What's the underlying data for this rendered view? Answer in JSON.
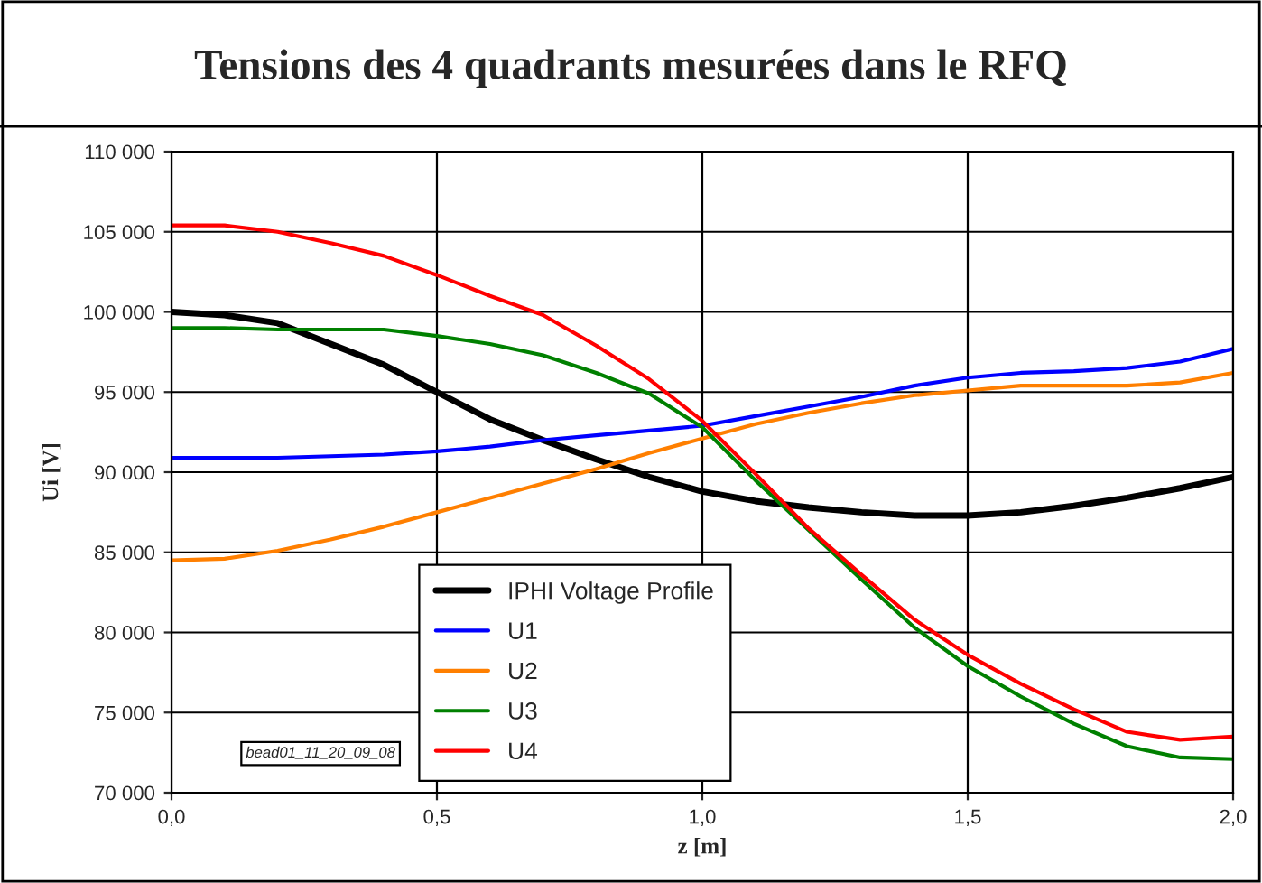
{
  "chart_data": {
    "type": "line",
    "title": "Tensions des 4 quadrants mesurées dans le RFQ",
    "xlabel": "z [m]",
    "ylabel": "Ui [V]",
    "x": [
      0,
      0.1,
      0.2,
      0.3,
      0.4,
      0.5,
      0.6,
      0.7,
      0.8,
      0.9,
      1.0,
      1.1,
      1.2,
      1.3,
      1.4,
      1.5,
      1.6,
      1.7,
      1.8,
      1.9,
      2.0
    ],
    "series": [
      {
        "name": "IPHI Voltage Profile",
        "color": "#000000",
        "values": [
          100000,
          99800,
          99300,
          98000,
          96700,
          95000,
          93300,
          92000,
          90800,
          89700,
          88800,
          88200,
          87800,
          87500,
          87300,
          87300,
          87500,
          87900,
          88400,
          89000,
          89700
        ]
      },
      {
        "name": "U1",
        "color": "#0000ff",
        "values": [
          90900,
          90900,
          90900,
          91000,
          91100,
          91300,
          91600,
          92000,
          92300,
          92600,
          92900,
          93500,
          94100,
          94700,
          95400,
          95900,
          96200,
          96300,
          96500,
          96900,
          97700
        ]
      },
      {
        "name": "U2",
        "color": "#ff7f00",
        "values": [
          84500,
          84600,
          85100,
          85800,
          86600,
          87500,
          88400,
          89300,
          90200,
          91200,
          92100,
          93000,
          93700,
          94300,
          94800,
          95100,
          95400,
          95400,
          95400,
          95600,
          96200
        ]
      },
      {
        "name": "U3",
        "color": "#008000",
        "values": [
          99000,
          99000,
          98900,
          98900,
          98900,
          98500,
          98000,
          97300,
          96200,
          94900,
          92800,
          89500,
          86400,
          83300,
          80300,
          77900,
          76000,
          74300,
          72900,
          72200,
          72100
        ]
      },
      {
        "name": "U4",
        "color": "#ff0000",
        "values": [
          105400,
          105400,
          105000,
          104300,
          103500,
          102300,
          101000,
          99800,
          97900,
          95800,
          93200,
          89900,
          86500,
          83600,
          80800,
          78600,
          76800,
          75200,
          73800,
          73300,
          73500
        ]
      }
    ],
    "xlim": [
      0,
      2.0
    ],
    "xticks": [
      {
        "value": 0,
        "label": "0,0"
      },
      {
        "value": 0.5,
        "label": "0,5"
      },
      {
        "value": 1.0,
        "label": "1,0"
      },
      {
        "value": 1.5,
        "label": "1,5"
      },
      {
        "value": 2.0,
        "label": "2,0"
      }
    ],
    "ylim": [
      70000,
      110000
    ],
    "yticks": [
      {
        "value": 70000,
        "label": "70 000"
      },
      {
        "value": 75000,
        "label": "75 000"
      },
      {
        "value": 80000,
        "label": "80 000"
      },
      {
        "value": 85000,
        "label": "85 000"
      },
      {
        "value": 90000,
        "label": "90 000"
      },
      {
        "value": 95000,
        "label": "95 000"
      },
      {
        "value": 100000,
        "label": "100 000"
      },
      {
        "value": 105000,
        "label": "105 000"
      },
      {
        "value": 110000,
        "label": "110 000"
      }
    ],
    "annotations": [
      "bead01_11_20_09_08"
    ],
    "grid": true,
    "legend": "bottom",
    "marker": "none",
    "line_style": "solid"
  }
}
